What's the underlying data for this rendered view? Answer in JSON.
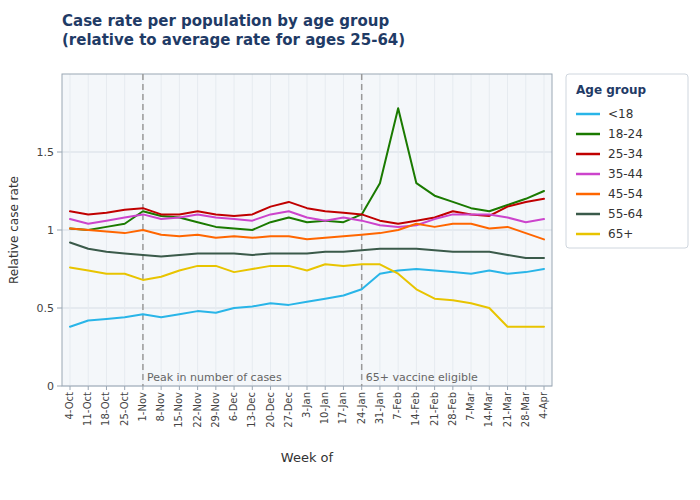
{
  "chart_data": {
    "type": "line",
    "title": "Case rate per population by age group\n(relative to average rate for ages 25-64)",
    "x_label": "Week of",
    "y_label": "Relative case rate",
    "legend_title": "Age group",
    "categories": [
      "4-Oct",
      "11-Oct",
      "18-Oct",
      "25-Oct",
      "1-Nov",
      "8-Nov",
      "15-Nov",
      "22-Nov",
      "29-Nov",
      "6-Dec",
      "13-Dec",
      "20-Dec",
      "27-Dec",
      "3-Jan",
      "10-Jan",
      "17-Jan",
      "24-Jan",
      "31-Jan",
      "7-Feb",
      "14-Feb",
      "21-Feb",
      "28-Feb",
      "7-Mar",
      "14-Mar",
      "21-Mar",
      "28-Mar",
      "4-Apr"
    ],
    "series": [
      {
        "name": "<18",
        "color": "#29b5e8",
        "values": [
          0.38,
          0.42,
          0.43,
          0.44,
          0.46,
          0.44,
          0.46,
          0.48,
          0.47,
          0.5,
          0.51,
          0.53,
          0.52,
          0.54,
          0.56,
          0.58,
          0.62,
          0.72,
          0.74,
          0.75,
          0.74,
          0.73,
          0.72,
          0.74,
          0.72,
          0.73,
          0.75
        ]
      },
      {
        "name": "18-24",
        "color": "#1a7a00",
        "values": [
          1.01,
          1.0,
          1.02,
          1.04,
          1.12,
          1.09,
          1.08,
          1.05,
          1.02,
          1.01,
          1.0,
          1.05,
          1.08,
          1.05,
          1.06,
          1.05,
          1.1,
          1.3,
          1.78,
          1.3,
          1.22,
          1.18,
          1.14,
          1.12,
          1.16,
          1.2,
          1.25
        ]
      },
      {
        "name": "25-34",
        "color": "#c00000",
        "values": [
          1.12,
          1.1,
          1.11,
          1.13,
          1.14,
          1.1,
          1.1,
          1.12,
          1.1,
          1.09,
          1.1,
          1.15,
          1.18,
          1.14,
          1.12,
          1.11,
          1.1,
          1.06,
          1.04,
          1.06,
          1.08,
          1.12,
          1.1,
          1.09,
          1.15,
          1.18,
          1.2
        ]
      },
      {
        "name": "35-44",
        "color": "#cc44cc",
        "values": [
          1.07,
          1.04,
          1.06,
          1.08,
          1.1,
          1.07,
          1.08,
          1.1,
          1.08,
          1.07,
          1.06,
          1.1,
          1.12,
          1.08,
          1.06,
          1.08,
          1.06,
          1.03,
          1.02,
          1.03,
          1.07,
          1.1,
          1.1,
          1.1,
          1.08,
          1.05,
          1.07
        ]
      },
      {
        "name": "45-54",
        "color": "#ff6600",
        "values": [
          1.01,
          1.0,
          0.99,
          0.98,
          1.0,
          0.97,
          0.96,
          0.97,
          0.95,
          0.96,
          0.95,
          0.96,
          0.96,
          0.94,
          0.95,
          0.96,
          0.97,
          0.98,
          1.0,
          1.04,
          1.02,
          1.04,
          1.04,
          1.01,
          1.02,
          0.98,
          0.94
        ]
      },
      {
        "name": "55-64",
        "color": "#3a5a4a",
        "values": [
          0.92,
          0.88,
          0.86,
          0.85,
          0.84,
          0.83,
          0.84,
          0.85,
          0.85,
          0.85,
          0.84,
          0.85,
          0.85,
          0.85,
          0.86,
          0.86,
          0.87,
          0.88,
          0.88,
          0.88,
          0.87,
          0.86,
          0.86,
          0.86,
          0.84,
          0.82,
          0.82
        ]
      },
      {
        "name": "65+",
        "color": "#e8c400",
        "values": [
          0.76,
          0.74,
          0.72,
          0.72,
          0.68,
          0.7,
          0.74,
          0.77,
          0.77,
          0.73,
          0.75,
          0.77,
          0.77,
          0.74,
          0.78,
          0.77,
          0.78,
          0.78,
          0.72,
          0.62,
          0.56,
          0.55,
          0.53,
          0.5,
          0.38,
          0.38,
          0.38
        ]
      }
    ],
    "annotations": [
      {
        "x": "1-Nov",
        "text": "Peak in number of cases"
      },
      {
        "x": "24-Jan",
        "text": "65+ vaccine eligible"
      }
    ],
    "ylim": [
      0,
      2.0
    ],
    "yticks": [
      0,
      0.5,
      1.0,
      1.5
    ],
    "grid": true,
    "legend": "right"
  }
}
